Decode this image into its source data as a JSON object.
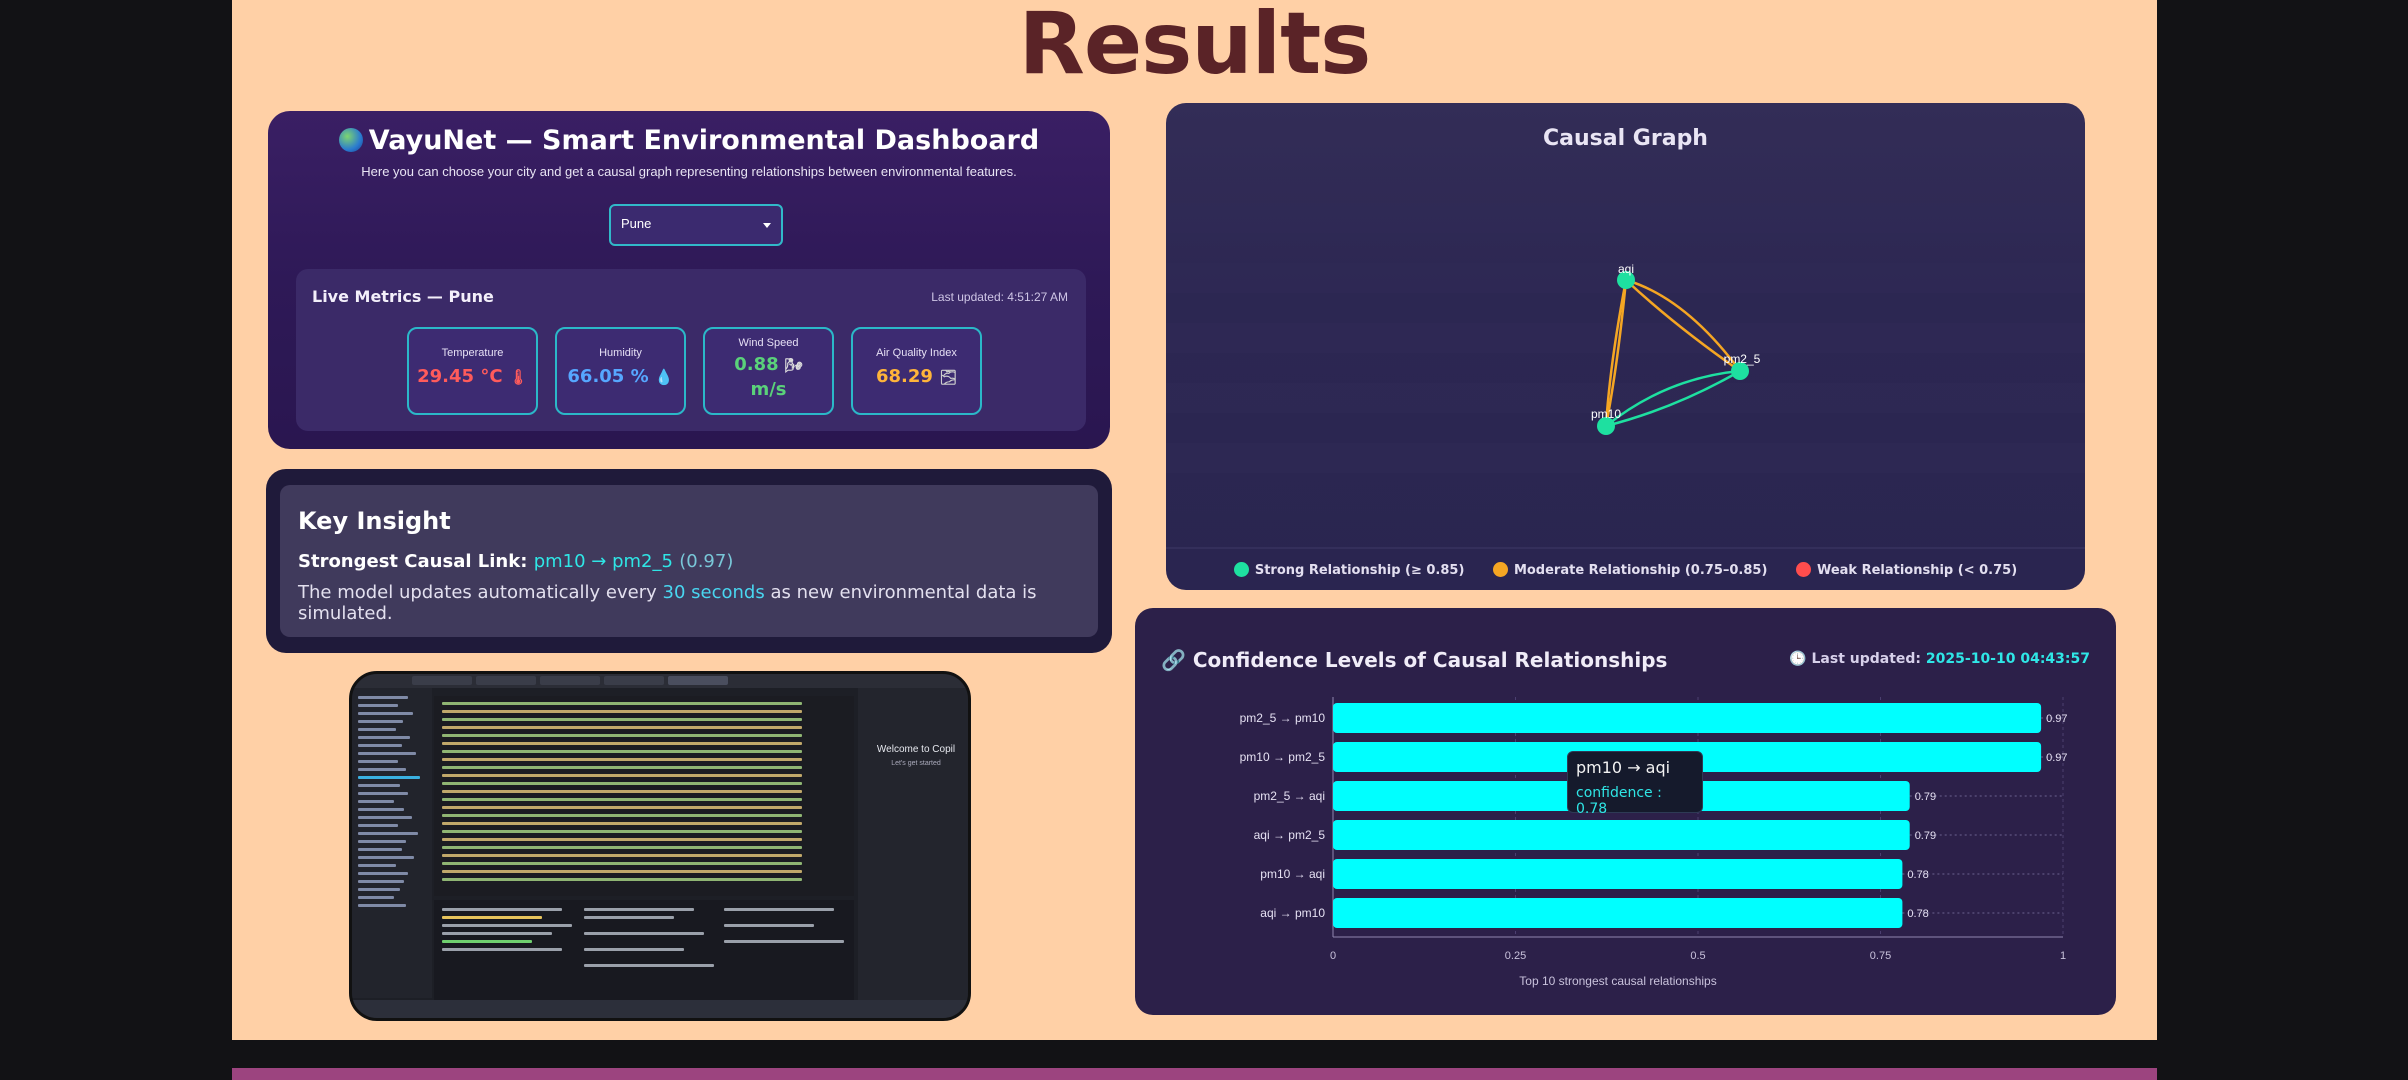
{
  "page": {
    "title": "Results"
  },
  "dashboard": {
    "title": "VayuNet — Smart Environmental Dashboard",
    "subtitle": "Here you can choose your city and get a causal graph representing relationships between environmental features.",
    "city": "Pune",
    "live_title": "Live Metrics — Pune",
    "last_updated": "Last updated: 4:51:27 AM",
    "metrics": [
      {
        "label": "Temperature",
        "value": "29.45 °C",
        "icon": "thermometer-icon",
        "glyph": "🌡",
        "color": "#ff5b5b"
      },
      {
        "label": "Humidity",
        "value": "66.05 %",
        "icon": "droplet-icon",
        "glyph": "💧",
        "color": "#56a7ff"
      },
      {
        "label": "Wind Speed",
        "value": "0.88 m/s",
        "value_line1": "0.88",
        "value_line2": "m/s",
        "icon": "wind-icon",
        "glyph": "🌬",
        "color": "#5ad17a"
      },
      {
        "label": "Air Quality Index",
        "value": "68.29",
        "icon": "fog-icon",
        "glyph": "🌫",
        "color": "#ffb43a"
      }
    ]
  },
  "insight": {
    "heading": "Key Insight",
    "link_label": "Strongest Causal Link:",
    "link_pair": "pm10 → pm2_5",
    "link_score": "(0.97)",
    "text_before": "The model updates automatically every",
    "text_highlight": "30 seconds",
    "text_after": "as new environmental data is simulated."
  },
  "thumbnail": {
    "side_title": "Welcome to Copil",
    "side_sub": "Let's get started"
  },
  "causal_graph": {
    "title": "Causal Graph",
    "nodes": [
      "aqi",
      "pm2_5",
      "pm10"
    ],
    "legend": [
      {
        "label": "Strong Relationship (≥ 0.85)",
        "color": "#1ee0a0"
      },
      {
        "label": "Moderate Relationship (0.75–0.85)",
        "color": "#f5a623"
      },
      {
        "label": "Weak Relationship (< 0.75)",
        "color": "#ff4d4d"
      }
    ]
  },
  "confidence": {
    "title": "Confidence Levels of Causal Relationships",
    "updated_label": "Last updated:",
    "updated_value": "2025-10-10 04:43:57",
    "tooltip_title": "pm10 → aqi",
    "tooltip_value": "confidence : 0.78"
  },
  "chart_data": {
    "type": "bar",
    "orientation": "horizontal",
    "categories": [
      "pm2_5 → pm10",
      "pm10 → pm2_5",
      "pm2_5 → aqi",
      "aqi → pm2_5",
      "pm10 → aqi",
      "aqi → pm10"
    ],
    "values": [
      0.97,
      0.97,
      0.79,
      0.79,
      0.78,
      0.78
    ],
    "xlim": [
      0,
      1
    ],
    "xticks": [
      "0",
      "0.25",
      "0.5",
      "0.75",
      "1"
    ],
    "xlabel": "Top 10 strongest causal relationships",
    "bar_color": "#00ffff",
    "grid": true
  }
}
